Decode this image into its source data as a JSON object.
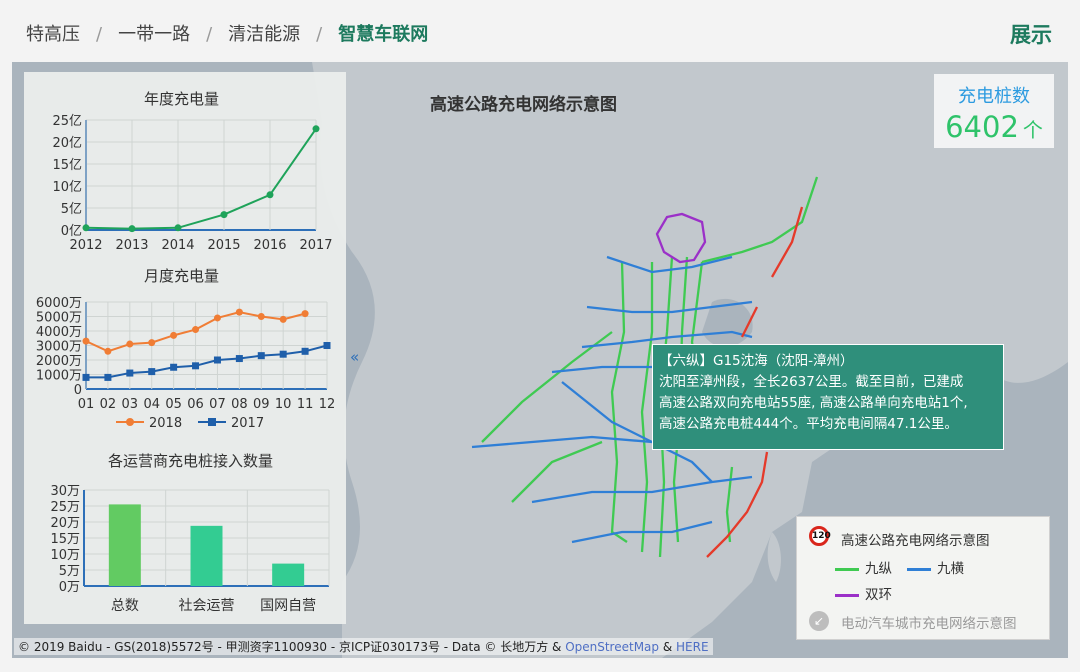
{
  "breadcrumbs": [
    "特高压",
    "一带一路",
    "清洁能源",
    "智慧车联网"
  ],
  "breadcrumb_separator": "/",
  "show_button": "展示",
  "map": {
    "title": "高速公路充电网络示意图",
    "count_label": "充电桩数",
    "count_value": "6402",
    "count_unit": "个",
    "collapse_icon": "«",
    "colors": {
      "jiuzong": "#3fca52",
      "jiuheng": "#2f7fd6",
      "shuanghuan": "#9b30c8",
      "highlight": "#e53a2a"
    }
  },
  "tooltip": {
    "title": "【六纵】G15沈海（沈阳-漳州）",
    "lines": [
      "沈阳至漳州段，全长2637公里。截至目前，已建成",
      "高速公路双向充电站55座, 高速公路单向充电站1个,",
      "高速公路充电桩444个。平均充电间隔47.1公里。"
    ]
  },
  "legend": {
    "title": "高速公路充电网络示意图",
    "sign_text": "120",
    "items": [
      {
        "label": "九纵",
        "color": "#3fca52"
      },
      {
        "label": "九横",
        "color": "#2f7fd6"
      },
      {
        "label": "双环",
        "color": "#9b30c8"
      }
    ],
    "city_link": "电动汽车城市充电网络示意图",
    "city_icon": "↙"
  },
  "copyright": {
    "text": "© 2019 Baidu - GS(2018)5572号 - 甲测资字1100930 - 京ICP证030173号 - Data © 长地万方 & ",
    "osm": "OpenStreetMap",
    "amp": " & ",
    "here": "HERE"
  },
  "chart_data": [
    {
      "type": "line",
      "title": "年度充电量",
      "categories": [
        "2012",
        "2013",
        "2014",
        "2015",
        "2016",
        "2017"
      ],
      "series": [
        {
          "values": [
            0.5,
            0.3,
            0.5,
            3.5,
            8.0,
            23.0
          ],
          "color": "#1fa35a"
        }
      ],
      "y_ticks": [
        "0亿",
        "5亿",
        "10亿",
        "15亿",
        "20亿",
        "25亿"
      ],
      "ylim": [
        0,
        25
      ],
      "grid": true
    },
    {
      "type": "line",
      "title": "月度充电量",
      "categories": [
        "01",
        "02",
        "03",
        "04",
        "05",
        "06",
        "07",
        "08",
        "09",
        "10",
        "11",
        "12"
      ],
      "series": [
        {
          "name": "2018",
          "color": "#f07d35",
          "values": [
            3300,
            2600,
            3100,
            3200,
            3700,
            4100,
            4900,
            5300,
            5000,
            4800,
            5200,
            null
          ]
        },
        {
          "name": "2017",
          "color": "#1f5faa",
          "values": [
            800,
            800,
            1100,
            1200,
            1500,
            1600,
            2000,
            2100,
            2300,
            2400,
            2600,
            3000
          ]
        }
      ],
      "y_ticks": [
        "0",
        "1000万",
        "2000万",
        "3000万",
        "4000万",
        "5000万",
        "6000万"
      ],
      "ylim": [
        0,
        6000
      ],
      "legend": "bottom",
      "grid": true
    },
    {
      "type": "bar",
      "title": "各运营商充电桩接入数量",
      "categories": [
        "总数",
        "社会运营",
        "国网自营"
      ],
      "values": [
        25.5,
        18.8,
        7.0
      ],
      "colors": [
        "#62cb62",
        "#33cc92",
        "#33cc92"
      ],
      "y_ticks": [
        "0万",
        "5万",
        "10万",
        "15万",
        "20万",
        "25万",
        "30万"
      ],
      "ylim": [
        0,
        30
      ],
      "grid": true
    }
  ]
}
